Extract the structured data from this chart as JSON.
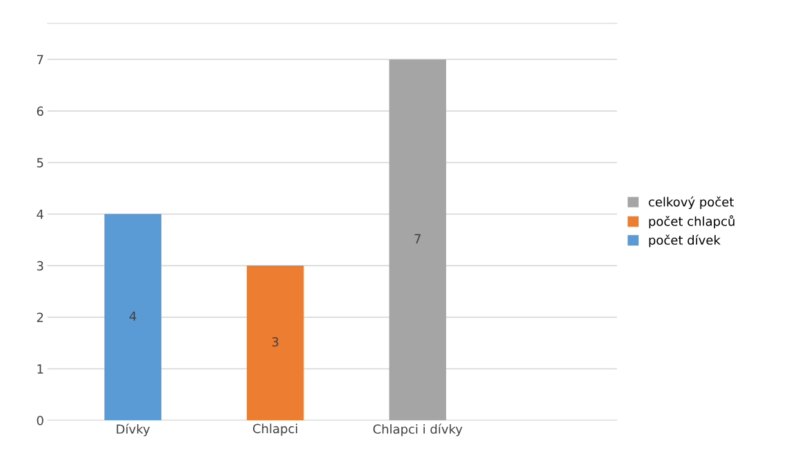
{
  "chart_data": {
    "type": "bar",
    "categories": [
      "Dívky",
      "Chlapci",
      "Chlapci i dívky"
    ],
    "series": [
      {
        "name": "celkový počet",
        "color": "#a5a5a5",
        "values": [
          null,
          null,
          7
        ]
      },
      {
        "name": "počet chlapců",
        "color": "#ed7d31",
        "values": [
          null,
          3,
          null
        ]
      },
      {
        "name": "počet dívek",
        "color": "#5b9bd5",
        "values": [
          4,
          null,
          null
        ]
      }
    ],
    "ylim": [
      0,
      7.7
    ],
    "yticks": [
      0,
      1,
      2,
      3,
      4,
      5,
      6,
      7
    ],
    "grid": "y",
    "legend": "right",
    "data_labels": true
  }
}
